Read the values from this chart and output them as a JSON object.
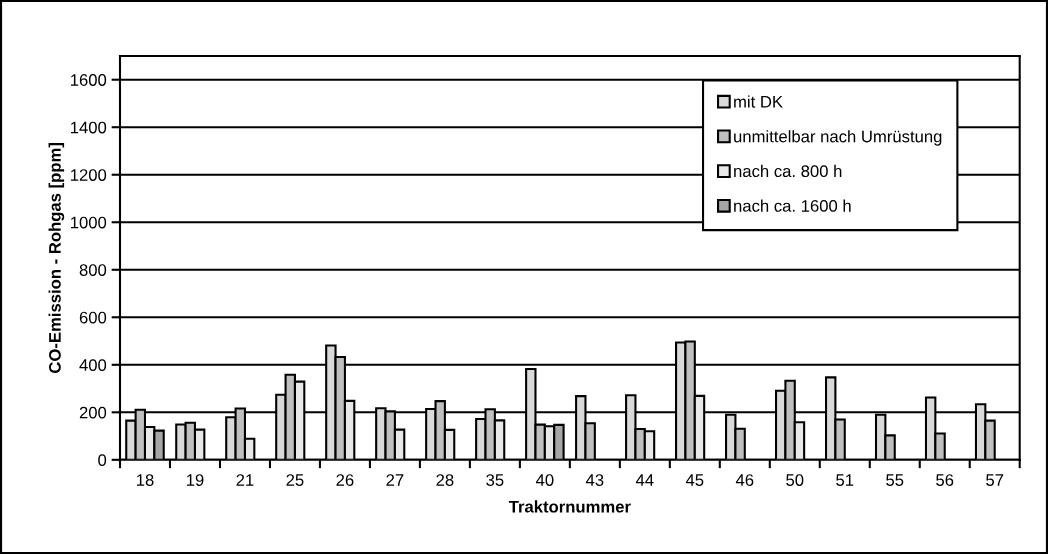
{
  "chart_data": {
    "type": "bar",
    "xlabel": "Traktornummer",
    "ylabel": "CO-Emission - Rohgas [ppm]",
    "categories": [
      "18",
      "19",
      "21",
      "25",
      "26",
      "27",
      "28",
      "35",
      "40",
      "43",
      "44",
      "45",
      "46",
      "50",
      "51",
      "55",
      "56",
      "57"
    ],
    "series": [
      {
        "name": "mit DK",
        "color": "#d9d9d9",
        "values": [
          165,
          149,
          179,
          274,
          481,
          217,
          214,
          172,
          382,
          268,
          272,
          494,
          190,
          291,
          347,
          190,
          262,
          234
        ]
      },
      {
        "name": "unmittelbar nach Umrüstung",
        "color": "#bfbfbf",
        "values": [
          211,
          156,
          216,
          358,
          433,
          204,
          247,
          213,
          148,
          154,
          130,
          498,
          131,
          333,
          170,
          103,
          111,
          165
        ]
      },
      {
        "name": "nach ca. 800 h",
        "color": "#e8e8e8",
        "values": [
          138,
          127,
          89,
          329,
          248,
          127,
          126,
          166,
          141,
          null,
          120,
          269,
          null,
          158,
          null,
          null,
          null,
          null
        ]
      },
      {
        "name": "nach ca. 1600 h",
        "color": "#a6a6a6",
        "values": [
          123,
          null,
          null,
          null,
          null,
          null,
          null,
          null,
          147,
          null,
          null,
          null,
          null,
          null,
          null,
          null,
          null,
          null
        ]
      }
    ],
    "ylim": [
      0,
      1700
    ],
    "yticks": [
      0,
      200,
      400,
      600,
      800,
      1000,
      1200,
      1400,
      1600
    ],
    "grid": "y",
    "legend": "top right"
  }
}
